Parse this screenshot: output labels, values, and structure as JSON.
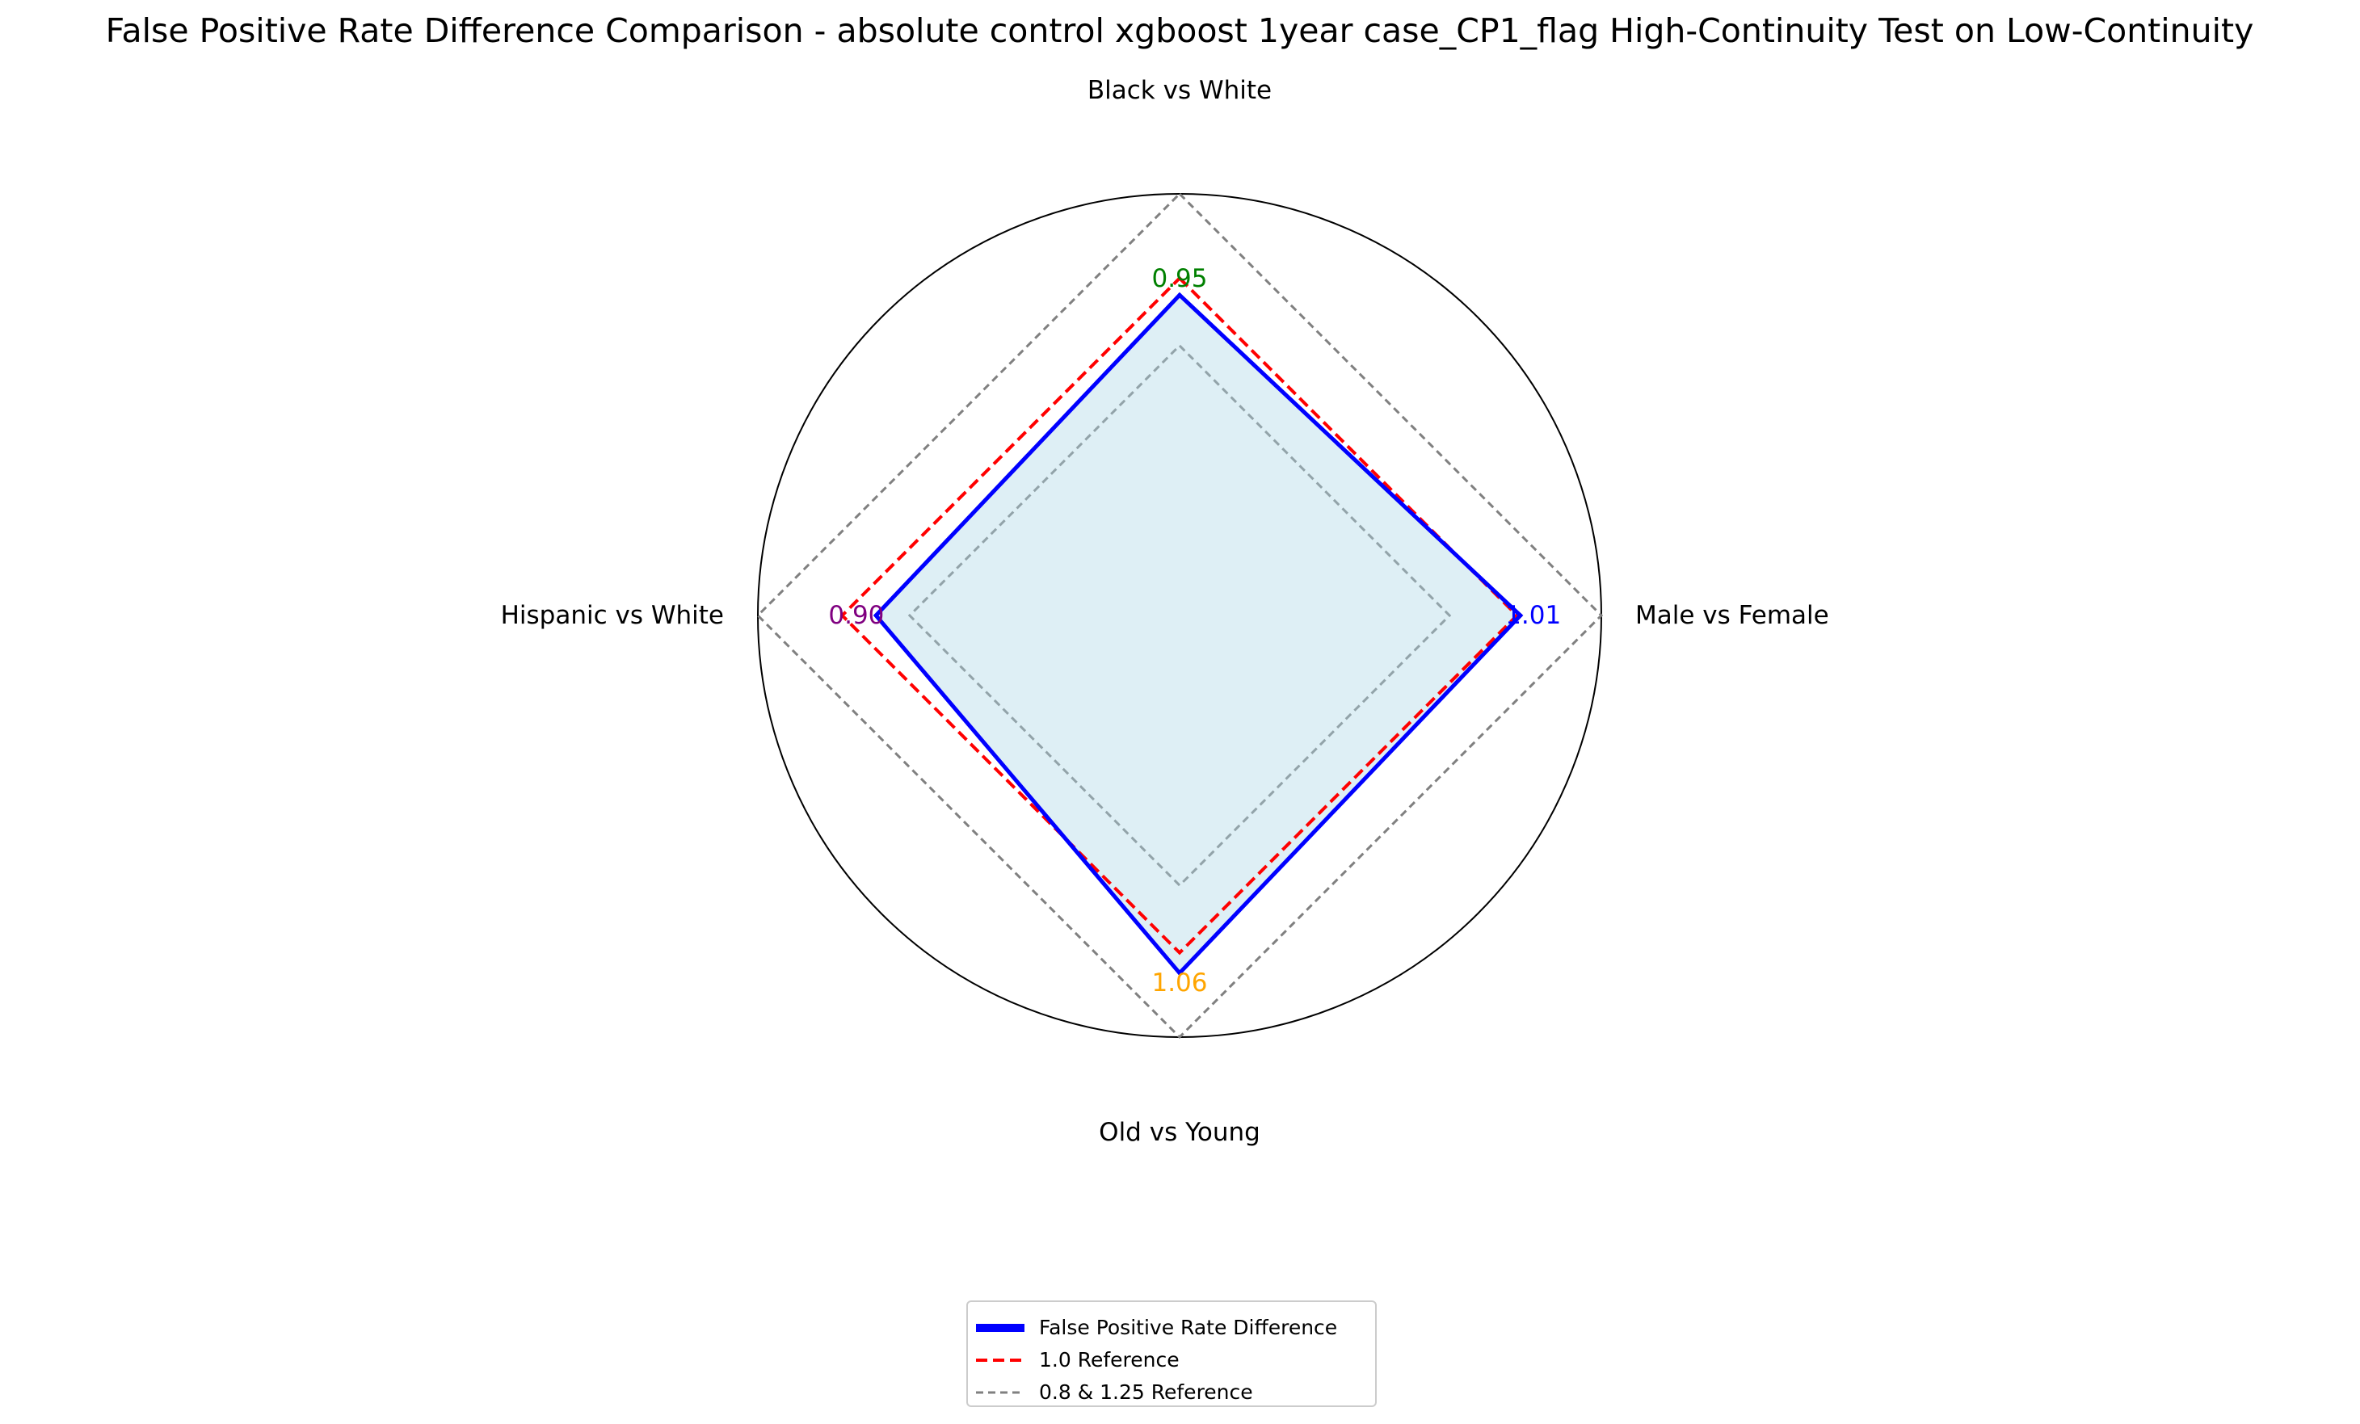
{
  "chart_data": {
    "type": "radar",
    "title": "False Positive Rate Difference Comparison - absolute control xgboost 1year case_CP1_flag High-Continuity Test on Low-Continuity",
    "categories": [
      "Black vs White",
      "Male vs Female",
      "Old vs Young",
      "Hispanic vs White"
    ],
    "series": [
      {
        "name": "False Positive Rate Difference",
        "values": [
          0.95,
          1.01,
          1.06,
          0.9
        ],
        "color": "#0000ff",
        "fill": "#add8e6"
      }
    ],
    "value_labels": [
      "0.95",
      "1.01",
      "1.06",
      "0.90"
    ],
    "value_label_colors": [
      "#008000",
      "#0000ff",
      "#ffa500",
      "#800080"
    ],
    "reference_lines": [
      {
        "name": "1.0 Reference",
        "value": 1.0,
        "color": "#ff0000",
        "style": "dashed"
      },
      {
        "name": "0.8 & 1.25 Reference",
        "values": [
          0.8,
          1.25
        ],
        "color": "#808080",
        "style": "dashed"
      }
    ],
    "rlim": [
      0,
      1.25
    ],
    "grid": false,
    "legend_position": "bottom-center",
    "legend": {
      "items": [
        "False Positive Rate Difference",
        "1.0 Reference",
        "0.8 & 1.25 Reference"
      ]
    }
  }
}
